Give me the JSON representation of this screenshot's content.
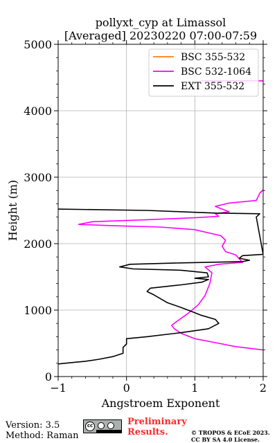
{
  "chart_data": {
    "type": "line",
    "title": "pollyxt_cyp at Limassol",
    "subtitle": "[Averaged] 20230220 07:00-07:59",
    "xlabel": "Angstroem Exponent",
    "ylabel": "Height (m)",
    "xlim": [
      -1,
      2
    ],
    "ylim": [
      0,
      5000
    ],
    "xticks": [
      "−1",
      "0",
      "1",
      "2"
    ],
    "yticks": [
      "0",
      "1000",
      "2000",
      "3000",
      "4000",
      "5000"
    ],
    "grid": true,
    "legend_position": "top-right",
    "series": [
      {
        "name": "BSC 355-532",
        "color": "#ff7f0e",
        "points": []
      },
      {
        "name": "BSC 532-1064",
        "color": "#ff00ff",
        "points": [
          [
            2.0,
            400
          ],
          [
            1.6,
            450
          ],
          [
            1.3,
            510
          ],
          [
            1.0,
            570
          ],
          [
            0.8,
            650
          ],
          [
            0.7,
            720
          ],
          [
            0.66,
            770
          ],
          [
            0.75,
            840
          ],
          [
            0.9,
            950
          ],
          [
            1.05,
            1080
          ],
          [
            1.15,
            1220
          ],
          [
            1.22,
            1400
          ],
          [
            1.25,
            1560
          ],
          [
            1.15,
            1650
          ],
          [
            1.35,
            1690
          ],
          [
            1.7,
            1720
          ],
          [
            1.65,
            1770
          ],
          [
            1.6,
            1830
          ],
          [
            1.45,
            1880
          ],
          [
            1.4,
            1960
          ],
          [
            1.45,
            2050
          ],
          [
            1.38,
            2120
          ],
          [
            1.0,
            2210
          ],
          [
            0.5,
            2250
          ],
          [
            -0.2,
            2270
          ],
          [
            -0.7,
            2290
          ],
          [
            -0.5,
            2330
          ],
          [
            0.3,
            2360
          ],
          [
            1.0,
            2390
          ],
          [
            1.35,
            2410
          ],
          [
            1.3,
            2450
          ],
          [
            1.5,
            2480
          ],
          [
            1.3,
            2560
          ],
          [
            1.5,
            2610
          ],
          [
            1.9,
            2650
          ],
          [
            1.95,
            2760
          ],
          [
            2.0,
            2810
          ]
        ],
        "extra_points": [
          [
            1.1,
            4450
          ],
          [
            2.0,
            4450
          ]
        ]
      },
      {
        "name": "EXT 355-532",
        "color": "#000000",
        "points": [
          [
            -1.0,
            190
          ],
          [
            -0.8,
            210
          ],
          [
            -0.6,
            230
          ],
          [
            -0.4,
            260
          ],
          [
            -0.2,
            300
          ],
          [
            -0.05,
            350
          ],
          [
            -0.05,
            440
          ],
          [
            0.0,
            490
          ],
          [
            0.0,
            570
          ],
          [
            0.3,
            600
          ],
          [
            0.8,
            660
          ],
          [
            1.2,
            720
          ],
          [
            1.35,
            800
          ],
          [
            1.3,
            860
          ],
          [
            1.1,
            920
          ],
          [
            0.95,
            980
          ],
          [
            0.8,
            1040
          ],
          [
            0.6,
            1110
          ],
          [
            0.5,
            1170
          ],
          [
            0.4,
            1230
          ],
          [
            0.3,
            1280
          ],
          [
            0.35,
            1330
          ],
          [
            0.8,
            1380
          ],
          [
            1.1,
            1420
          ],
          [
            1.2,
            1460
          ],
          [
            1.0,
            1480
          ],
          [
            1.2,
            1500
          ],
          [
            1.18,
            1560
          ],
          [
            0.8,
            1600
          ],
          [
            0.1,
            1620
          ],
          [
            -0.1,
            1650
          ],
          [
            0.05,
            1690
          ],
          [
            0.8,
            1710
          ],
          [
            1.7,
            1730
          ],
          [
            1.8,
            1750
          ],
          [
            1.65,
            1780
          ],
          [
            1.7,
            1820
          ],
          [
            2.0,
            1840
          ],
          [
            1.9,
            2400
          ],
          [
            1.95,
            2450
          ],
          [
            1.3,
            2460
          ],
          [
            0.8,
            2480
          ],
          [
            0.3,
            2500
          ],
          [
            -1.0,
            2520
          ]
        ]
      }
    ]
  },
  "footer": {
    "version": "Version: 3.5",
    "method": "Method: Raman",
    "preliminary_line1": "Preliminary",
    "preliminary_line2": "Results.",
    "copyright_line1": "© TROPOS & ECoE 2023.",
    "copyright_line2": "CC BY SA 4.0 License.",
    "cc_badge": "cc-by-sa-icon"
  }
}
